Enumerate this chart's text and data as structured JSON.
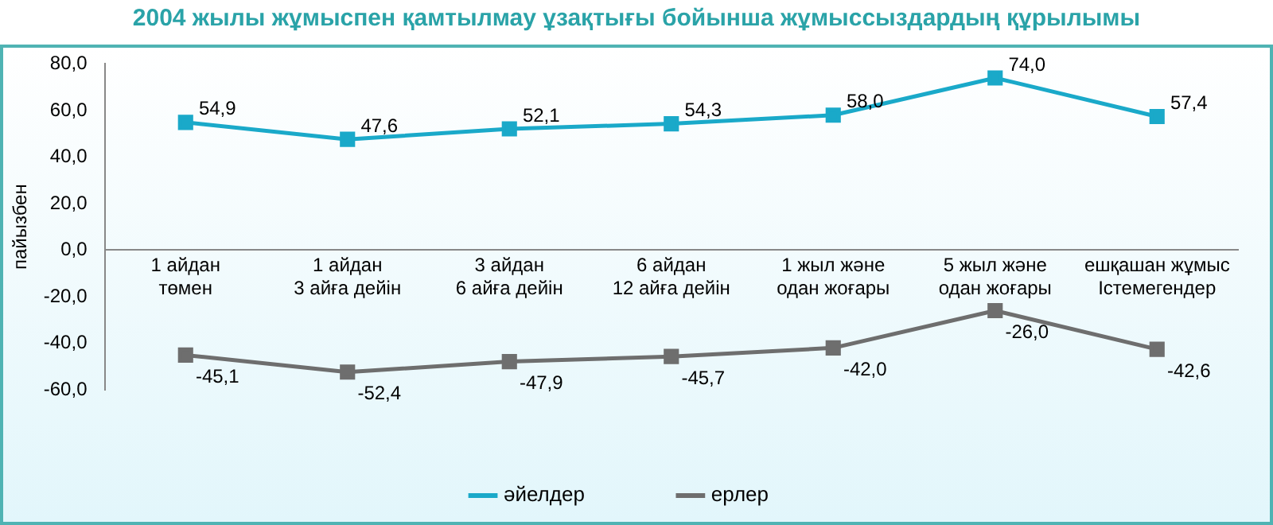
{
  "chart_data": {
    "type": "line",
    "title": "2004 жылы жұмыспен қамтылмау ұзақтығы бойынша жұмыссыздардың құрылымы",
    "ylabel": "пайызбен",
    "categories": [
      "1 айдан\nтөмен",
      "1 айдан\n3 айға дейін",
      "3 айдан\n6 айға дейін",
      "6 айдан\n12 айға дейін",
      "1 жыл және\nодан жоғары",
      "5 жыл және\nодан жоғары",
      "ешқашан жұмыс\nІстемегендер"
    ],
    "series": [
      {
        "name": "әйелдер",
        "color": "#1aa9c9",
        "values": [
          54.9,
          47.6,
          52.1,
          54.3,
          58.0,
          74.0,
          57.4
        ],
        "value_labels": [
          "54,9",
          "47,6",
          "52,1",
          "54,3",
          "58,0",
          "74,0",
          "57,4"
        ]
      },
      {
        "name": "ерлер",
        "color": "#6e6e6e",
        "values": [
          -45.1,
          -52.4,
          -47.9,
          -45.7,
          -42.0,
          -26.0,
          -42.6
        ],
        "value_labels": [
          "-45,1",
          "-52,4",
          "-47,9",
          "-45,7",
          "-42,0",
          "-26,0",
          "-42,6"
        ]
      }
    ],
    "ylim": [
      -60,
      80
    ],
    "yticks": [
      {
        "value": -60,
        "label": "-60,0"
      },
      {
        "value": -40,
        "label": "-40,0"
      },
      {
        "value": -20,
        "label": "-20,0"
      },
      {
        "value": 0,
        "label": "0,0"
      },
      {
        "value": 20,
        "label": "20,0"
      },
      {
        "value": 40,
        "label": "40,0"
      },
      {
        "value": 60,
        "label": "60,0"
      },
      {
        "value": 80,
        "label": "80,0"
      }
    ],
    "grid": false,
    "legend": "bottom",
    "marker": "square",
    "line_style": "solid"
  }
}
